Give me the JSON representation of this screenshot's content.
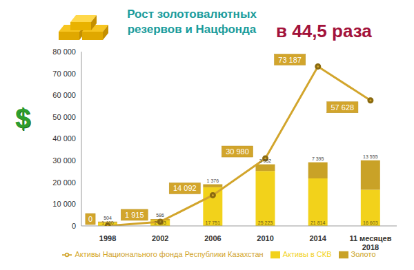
{
  "chart_data": {
    "type": "bar",
    "title": "Рост золотовалютных резервов и Нацфонда",
    "annotation": "в 44,5 раза",
    "y_label": "$",
    "categories": [
      "1998",
      "2002",
      "2006",
      "2010",
      "2014",
      "11 месяцев 2018"
    ],
    "series": [
      {
        "name": "Активы в СКВ",
        "type": "bar",
        "color": "#f2d21b",
        "values": [
          1460,
          2553,
          17751,
          25223,
          21814,
          16603
        ],
        "value_labels": [
          "1 460",
          "2 553",
          "17 751",
          "25 223",
          "21 814",
          "16 603"
        ]
      },
      {
        "name": "Золото",
        "type": "bar",
        "color": "#c9a227",
        "values": [
          504,
          586,
          1376,
          3052,
          7395,
          13555
        ],
        "value_labels": [
          "504",
          "586",
          "1 376",
          "3 052",
          "7 395",
          "13 555"
        ]
      },
      {
        "name": "Активы Национального фонда Республики Казахстан",
        "type": "line",
        "color": "#d2a52c",
        "marker": "circle",
        "values": [
          0,
          1915,
          14092,
          30980,
          73187,
          57628
        ],
        "value_labels": [
          "0",
          "1 915",
          "14 092",
          "30 980",
          "73 187",
          "57 628"
        ]
      }
    ],
    "ylim": [
      0,
      80000
    ],
    "yticks": [
      0,
      {
        "value": 10000,
        "label": "10 000"
      },
      {
        "value": 20000,
        "label": "20 000"
      },
      {
        "value": 30000,
        "label": "30 000"
      },
      {
        "value": 40000,
        "label": "40 000"
      },
      {
        "value": 50000,
        "label": "50 000"
      },
      {
        "value": 60000,
        "label": "60 000"
      },
      {
        "value": 70000,
        "label": "70 000"
      },
      {
        "value": 80000,
        "label": "80 000"
      }
    ],
    "stacked": true,
    "data_labels": true,
    "grid": false,
    "legend": "bottom"
  }
}
